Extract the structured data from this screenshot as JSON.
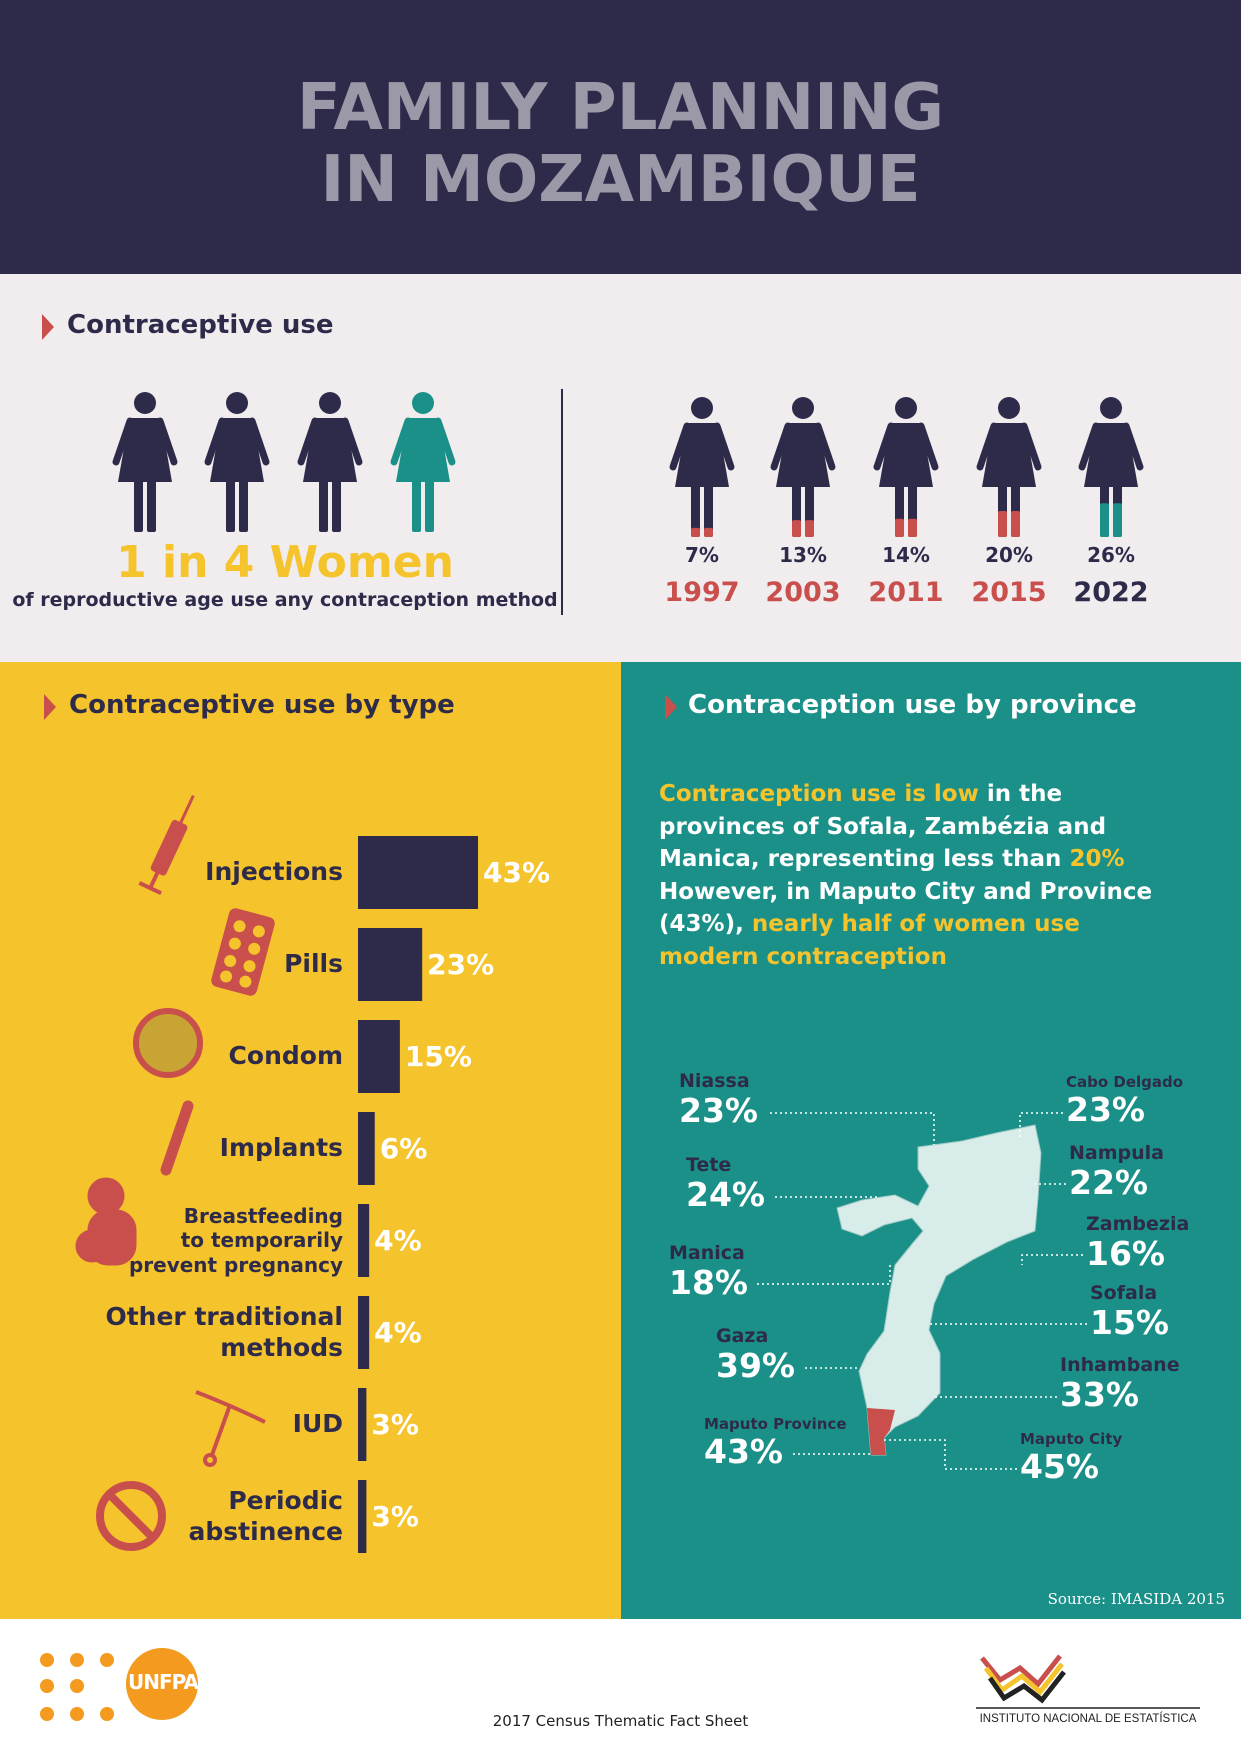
{
  "header": {
    "title_line1": "FAMILY PLANNING",
    "title_line2": "IN MOZAMBIQUE"
  },
  "contraceptive_use": {
    "title": "Contraceptive use",
    "headline": "1 in 4 Women",
    "subtext": "of reproductive age use any contraception method",
    "trend": [
      {
        "value": 7,
        "value_label": "7%",
        "year": "1997",
        "color": "#c94f4c",
        "year_color": "#c94f4c"
      },
      {
        "value": 13,
        "value_label": "13%",
        "year": "2003",
        "color": "#c94f4c",
        "year_color": "#c94f4c"
      },
      {
        "value": 14,
        "value_label": "14%",
        "year": "2011",
        "color": "#c94f4c",
        "year_color": "#c94f4c"
      },
      {
        "value": 20,
        "value_label": "20%",
        "year": "2015",
        "color": "#c94f4c",
        "year_color": "#c94f4c"
      },
      {
        "value": 26,
        "value_label": "26%",
        "year": "2022",
        "color": "#1a9088",
        "year_color": "#2e2b4a"
      }
    ]
  },
  "by_type": {
    "title": "Contraceptive use by type",
    "color": "#2e2b4a",
    "items": [
      {
        "label": [
          "Injections"
        ],
        "value": 43,
        "value_label": "43%"
      },
      {
        "label": [
          "Pills"
        ],
        "value": 23,
        "value_label": "23%"
      },
      {
        "label": [
          "Condom"
        ],
        "value": 15,
        "value_label": "15%"
      },
      {
        "label": [
          "Implants"
        ],
        "value": 6,
        "value_label": "6%"
      },
      {
        "label": [
          "Breastfeeding",
          "to temporarily",
          "prevent pregnancy"
        ],
        "value": 4,
        "value_label": "4%"
      },
      {
        "label": [
          "Other traditional",
          "methods"
        ],
        "value": 4,
        "value_label": "4%"
      },
      {
        "label": [
          "IUD"
        ],
        "value": 3,
        "value_label": "3%"
      },
      {
        "label": [
          "Periodic",
          "abstinence"
        ],
        "value": 3,
        "value_label": "3%"
      }
    ]
  },
  "by_province": {
    "title": "Contraception use by province",
    "paragraph": [
      "Contraception use is low",
      " in the",
      "provinces of Sofala, Zambézia and",
      "Manica, representing less than ",
      "20%",
      "However, in Maputo City and Province",
      "(43%), ",
      "nearly half of women use",
      "modern contraception"
    ],
    "provinces": [
      {
        "name": "Niassa",
        "value": "23%"
      },
      {
        "name": "Tete",
        "value": "24%"
      },
      {
        "name": "Manica",
        "value": "18%"
      },
      {
        "name": "Gaza",
        "value": "39%"
      },
      {
        "name": "Maputo Province",
        "value": "43%"
      },
      {
        "name": "Cabo Delgado",
        "value": "23%"
      },
      {
        "name": "Nampula",
        "value": "22%"
      },
      {
        "name": "Zambezia",
        "value": "16%"
      },
      {
        "name": "Sofala",
        "value": "15%"
      },
      {
        "name": "Inhambane",
        "value": "33%"
      },
      {
        "name": "Maputo City",
        "value": "45%"
      }
    ],
    "source": "Source: IMASIDA 2015"
  },
  "footer": {
    "logo_text": "UNFPA",
    "caption": "2017 Census Thematic Fact Sheet",
    "institute": "INSTITUTO NACIONAL DE ESTATÍSTICA"
  }
}
